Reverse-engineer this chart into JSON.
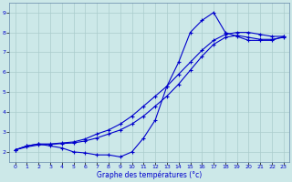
{
  "xlabel": "Graphe des températures (°c)",
  "bg_color": "#cce8e8",
  "line_color": "#0000cc",
  "grid_color": "#aacccc",
  "xlim": [
    -0.5,
    23.5
  ],
  "ylim": [
    1.5,
    9.5
  ],
  "xticks": [
    0,
    1,
    2,
    3,
    4,
    5,
    6,
    7,
    8,
    9,
    10,
    11,
    12,
    13,
    14,
    15,
    16,
    17,
    18,
    19,
    20,
    21,
    22,
    23
  ],
  "yticks": [
    2,
    3,
    4,
    5,
    6,
    7,
    8,
    9
  ],
  "hours": [
    0,
    1,
    2,
    3,
    4,
    5,
    6,
    7,
    8,
    9,
    10,
    11,
    12,
    13,
    14,
    15,
    16,
    17,
    18,
    19,
    20,
    21,
    22,
    23
  ],
  "line1": [
    2.1,
    2.3,
    2.4,
    2.3,
    2.2,
    2.0,
    1.95,
    1.85,
    1.85,
    1.75,
    2.0,
    2.7,
    3.6,
    5.3,
    6.5,
    8.0,
    8.6,
    9.0,
    8.0,
    7.8,
    7.6,
    7.6,
    7.6,
    7.8
  ],
  "line2": [
    2.1,
    2.3,
    2.4,
    2.4,
    2.45,
    2.5,
    2.65,
    2.9,
    3.1,
    3.4,
    3.8,
    4.3,
    4.8,
    5.3,
    5.9,
    6.5,
    7.1,
    7.6,
    7.9,
    8.0,
    8.0,
    7.9,
    7.8,
    7.8
  ],
  "line3": [
    2.1,
    2.25,
    2.35,
    2.38,
    2.42,
    2.45,
    2.55,
    2.7,
    2.9,
    3.1,
    3.4,
    3.8,
    4.3,
    4.8,
    5.4,
    6.1,
    6.8,
    7.4,
    7.75,
    7.85,
    7.75,
    7.65,
    7.65,
    7.75
  ]
}
